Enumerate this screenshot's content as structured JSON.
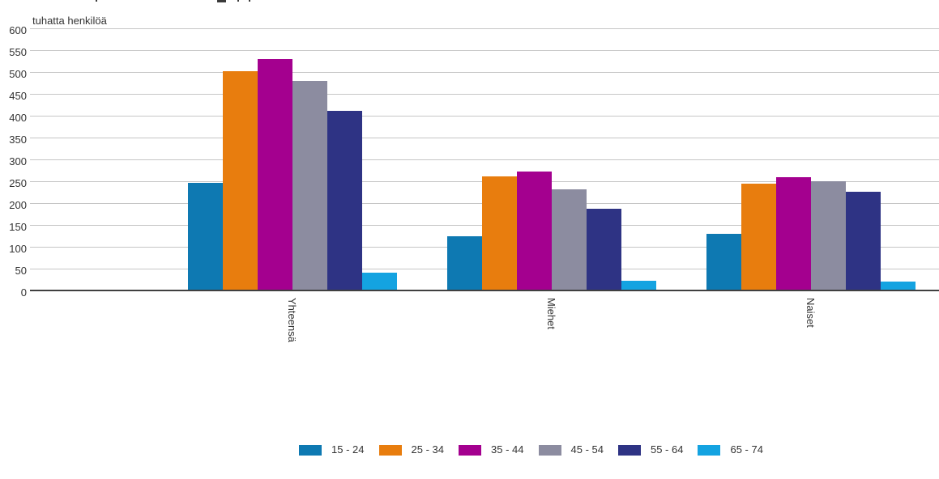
{
  "unit_label": "tuhatta henkilöä",
  "chart_data": {
    "type": "bar",
    "title": "",
    "ylabel": "tuhatta henkilöä",
    "xlabel": "",
    "categories": [
      "Yhteensä",
      "Miehet",
      "Naiset"
    ],
    "series": [
      {
        "name": "15 - 24",
        "color": "#0e79b2",
        "values": [
          245,
          122,
          128
        ]
      },
      {
        "name": "25 - 34",
        "color": "#e87d0e",
        "values": [
          500,
          260,
          242
        ]
      },
      {
        "name": "35 - 44",
        "color": "#a4008f",
        "values": [
          527,
          270,
          258
        ]
      },
      {
        "name": "45 - 54",
        "color": "#8c8ca0",
        "values": [
          477,
          230,
          248
        ]
      },
      {
        "name": "55 - 64",
        "color": "#2e3384",
        "values": [
          410,
          186,
          224
        ]
      },
      {
        "name": "65 - 74",
        "color": "#14a3e1",
        "values": [
          38,
          21,
          18
        ]
      }
    ],
    "ylim": [
      0,
      600
    ],
    "yticks": [
      0,
      50,
      100,
      150,
      200,
      250,
      300,
      350,
      400,
      450,
      500,
      550,
      600
    ],
    "grid": true,
    "legend_position": "bottom",
    "gridline_color": "#c6c6c6",
    "axis_color": "#404040",
    "text_color": "#333333"
  }
}
